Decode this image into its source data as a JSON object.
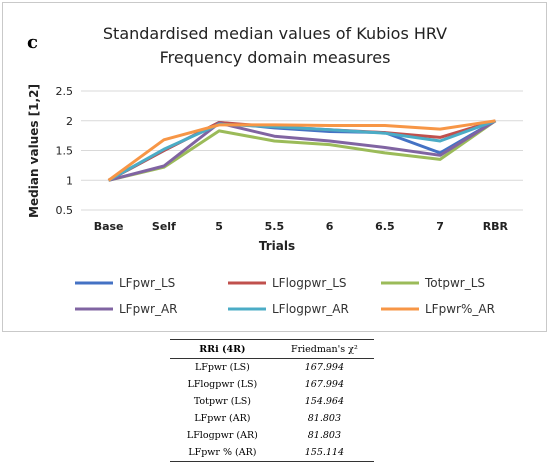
{
  "panel_label": "c",
  "chart_data": {
    "type": "line",
    "title_lines": [
      "Standardised median values of Kubios HRV",
      "Frequency domain measures"
    ],
    "xlabel": "Trials",
    "ylabel": "Median values [1,2]",
    "categories": [
      "Base",
      "Self",
      "5",
      "5.5",
      "6",
      "6.5",
      "7",
      "RBR"
    ],
    "ylim": [
      0.5,
      2.5
    ],
    "yticks": [
      "0.5",
      "1",
      "1.5",
      "2",
      "2.5"
    ],
    "grid": "horizontal",
    "legend_position": "bottom",
    "series": [
      {
        "name": "LFpwr_LS",
        "color": "#4472C4",
        "values": [
          1.0,
          1.5,
          1.97,
          1.88,
          1.82,
          1.8,
          1.46,
          2.0
        ]
      },
      {
        "name": "LFlogpwr_LS",
        "color": "#C0504D",
        "values": [
          1.0,
          1.5,
          1.97,
          1.9,
          1.85,
          1.8,
          1.72,
          2.0
        ]
      },
      {
        "name": "Totpwr_LS",
        "color": "#9BBB59",
        "values": [
          1.0,
          1.22,
          1.83,
          1.66,
          1.6,
          1.46,
          1.35,
          2.0
        ]
      },
      {
        "name": "LFpwr_AR",
        "color": "#8064A2",
        "values": [
          1.0,
          1.24,
          1.96,
          1.74,
          1.66,
          1.55,
          1.42,
          2.0
        ]
      },
      {
        "name": "LFlogpwr_AR",
        "color": "#4BACC6",
        "values": [
          1.0,
          1.52,
          1.94,
          1.9,
          1.85,
          1.79,
          1.66,
          2.0
        ]
      },
      {
        "name": "LFpwr%_AR",
        "color": "#F79646",
        "values": [
          1.0,
          1.68,
          1.93,
          1.93,
          1.92,
          1.92,
          1.86,
          2.0
        ]
      }
    ]
  },
  "table": {
    "headers": [
      "RRi (4R)",
      "Friedman's χ²"
    ],
    "rows": [
      {
        "measure": "LFpwr (LS)",
        "value": "167.994"
      },
      {
        "measure": "LFlogpwr (LS)",
        "value": "167.994"
      },
      {
        "measure": "Totpwr (LS)",
        "value": "154.964"
      },
      {
        "measure": "LFpwr (AR)",
        "value": "81.803"
      },
      {
        "measure": "LFlogpwr (AR)",
        "value": "81.803"
      },
      {
        "measure": "LFpwr % (AR)",
        "value": "155.114"
      }
    ]
  }
}
